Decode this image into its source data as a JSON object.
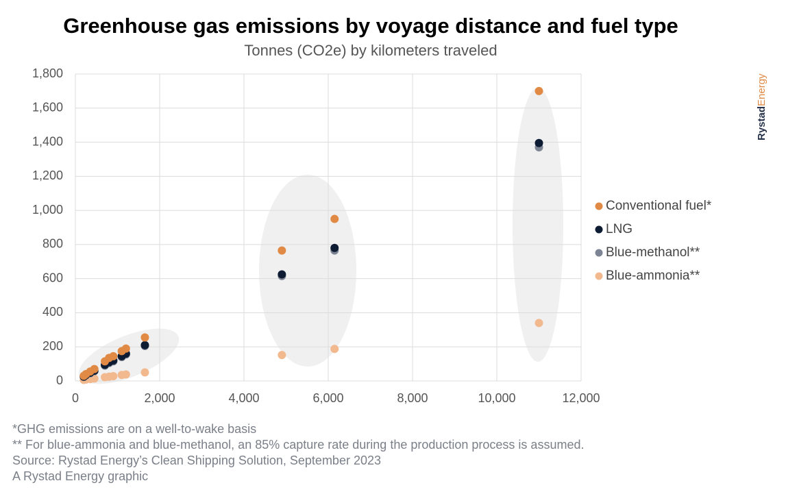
{
  "chart_data": {
    "type": "scatter",
    "title": "Greenhouse gas emissions by voyage distance and fuel type",
    "subtitle": "Tonnes (CO2e) by kilometers traveled",
    "brand": {
      "first": "Rystad",
      "second": "Energy"
    },
    "footnotes": [
      "*GHG emissions are on a well-to-wake basis",
      "** For blue-ammonia and blue-methanol, an 85% capture rate during the production process is assumed.",
      "Source: Rystad Energy’s Clean Shipping Solution, September 2023",
      "A Rystad Energy graphic"
    ],
    "xlim": [
      0,
      12000
    ],
    "xticks": [
      0,
      {
        "value": 2000,
        "label": "2,000"
      },
      {
        "value": 4000,
        "label": "4,000"
      },
      {
        "value": 6000,
        "label": "6,000"
      },
      {
        "value": 8000,
        "label": "8,000"
      },
      {
        "value": 10000,
        "label": "10,000"
      },
      {
        "value": 12000,
        "label": "12,000"
      }
    ],
    "ylim": [
      0,
      1800
    ],
    "yticks": [
      0,
      200,
      400,
      600,
      800,
      {
        "value": 1000,
        "label": "1,000"
      },
      {
        "value": 1200,
        "label": "1,200"
      },
      {
        "value": 1400,
        "label": "1,400"
      },
      {
        "value": 1600,
        "label": "1,600"
      },
      {
        "value": 1800,
        "label": "1,800"
      }
    ],
    "grid": true,
    "legend": "right",
    "series": [
      {
        "name": "Conventional fuel*",
        "color": "#e08a45",
        "x": [
          200,
          250,
          350,
          450,
          700,
          800,
          900,
          1100,
          1200,
          1650,
          4900,
          6150,
          11000
        ],
        "values": [
          30,
          40,
          55,
          70,
          115,
          135,
          145,
          175,
          190,
          255,
          765,
          950,
          1700
        ]
      },
      {
        "name": "LNG",
        "color": "#0d1b33",
        "x": [
          200,
          250,
          350,
          450,
          700,
          800,
          900,
          1100,
          1200,
          1650,
          4900,
          6150,
          11000
        ],
        "values": [
          25,
          35,
          48,
          60,
          95,
          110,
          120,
          145,
          160,
          210,
          625,
          780,
          1395
        ]
      },
      {
        "name": "Blue-methanol**",
        "color": "#7d8594",
        "x": [
          200,
          250,
          350,
          450,
          700,
          800,
          900,
          1100,
          1200,
          1650,
          4900,
          6150,
          11000
        ],
        "values": [
          24,
          33,
          45,
          57,
          90,
          105,
          115,
          140,
          155,
          205,
          615,
          765,
          1370
        ]
      },
      {
        "name": "Blue-ammonia**",
        "color": "#f2b98f",
        "x": [
          200,
          250,
          350,
          450,
          700,
          800,
          900,
          1100,
          1200,
          1650,
          4900,
          6150,
          11000
        ],
        "values": [
          6,
          8,
          11,
          14,
          22,
          25,
          28,
          35,
          38,
          50,
          152,
          188,
          340
        ]
      }
    ]
  }
}
